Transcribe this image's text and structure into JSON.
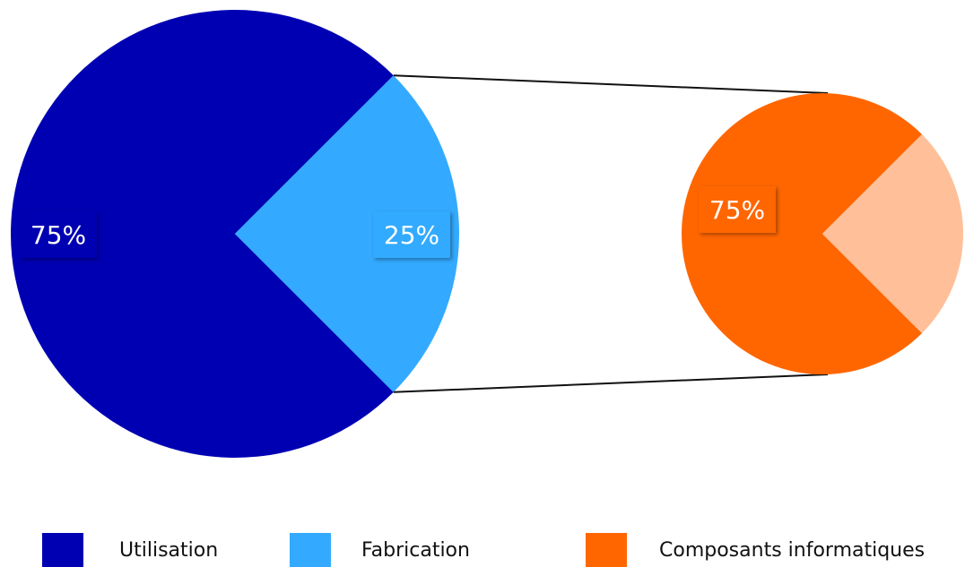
{
  "chart_data": {
    "type": "pie",
    "title": "",
    "main_pie": {
      "slices": [
        {
          "name": "Utilisation",
          "value": 75,
          "label": "75%",
          "color": "#0000b3"
        },
        {
          "name": "Fabrication",
          "value": 25,
          "label": "25%",
          "color": "#33aaff"
        }
      ]
    },
    "secondary_pie": {
      "expands": "Fabrication",
      "slices": [
        {
          "name": "Composants informatiques",
          "value": 75,
          "label": "75%",
          "color": "#ff6600"
        },
        {
          "name": "",
          "value": 25,
          "label": "",
          "color": "#ffc099"
        }
      ]
    },
    "legend": {
      "placement": "bottom",
      "entries": [
        {
          "label": "Utilisation",
          "color": "#0000b3"
        },
        {
          "label": "Fabrication",
          "color": "#33aaff"
        },
        {
          "label": "Composants informatiques",
          "color": "#ff6600"
        }
      ]
    }
  }
}
